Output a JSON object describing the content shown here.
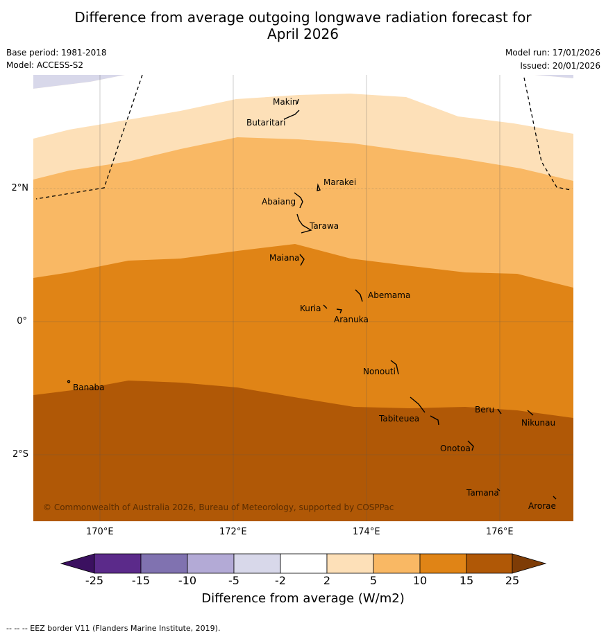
{
  "title": {
    "line1": "Difference from average outgoing longwave radiation forecast for",
    "line2": "April 2026"
  },
  "meta": {
    "base_period": "Base period: 1981-2018",
    "model": "Model: ACCESS-S2",
    "model_run": "Model run: 17/01/2026",
    "issued": "Issued: 20/01/2026"
  },
  "axes": {
    "lon_labels": [
      "170°E",
      "172°E",
      "174°E",
      "176°E"
    ],
    "lat_labels": [
      "2°N",
      "0°",
      "2°S"
    ]
  },
  "places": [
    "Makin",
    "Butaritari",
    "Marakei",
    "Abaiang",
    "Tarawa",
    "Maiana",
    "Abemama",
    "Kuria",
    "Aranuka",
    "Nonouti",
    "Banaba",
    "Beru",
    "Tabiteuea",
    "Nikunau",
    "Onotoa",
    "Tamana",
    "Arorae"
  ],
  "copyright": "© Commonwealth of Australia 2026, Bureau of Meteorology, supported by COSPPac",
  "colorbar": {
    "ticks": [
      "-25",
      "-15",
      "-10",
      "-5",
      "-2",
      "2",
      "5",
      "10",
      "15",
      "25"
    ],
    "colors": [
      "#5b2a8a",
      "#8072b0",
      "#b3aad6",
      "#d8d8ea",
      "#ffffff",
      "#fde0b8",
      "#f9b864",
      "#e08416",
      "#b05806"
    ],
    "under_color": "#3b1060",
    "over_color": "#7e3c06",
    "label": "Difference from average (W/m2)"
  },
  "footnote": "--  --  -- EEZ border V11 (Flanders Marine Institute, 2019).",
  "map": {
    "band_colors": {
      "anom_neg": "#d8d8ea",
      "anom_2_5": "#fde0b8",
      "anom_5_10": "#f9b864",
      "anom_10_15": "#e08416",
      "anom_15_25": "#b05806"
    }
  }
}
